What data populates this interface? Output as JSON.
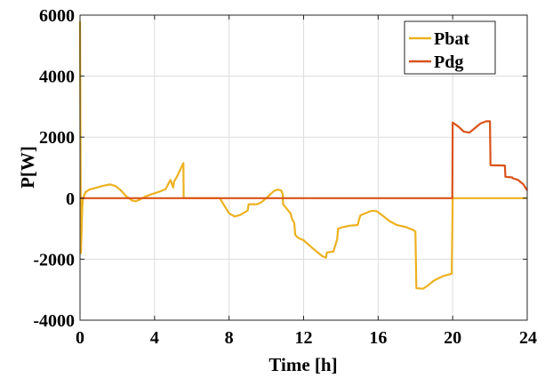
{
  "chart_data": {
    "type": "line",
    "xlabel": "Time [h]",
    "ylabel": "P[W]",
    "xlim": [
      0,
      24
    ],
    "ylim": [
      -4000,
      6000
    ],
    "xticks": [
      0,
      4,
      8,
      12,
      16,
      20,
      24
    ],
    "yticks": [
      -4000,
      -2000,
      0,
      2000,
      4000,
      6000
    ],
    "grid": true,
    "legend_position": "top-right",
    "series": [
      {
        "name": "Pbat",
        "color": "#EDB120",
        "x": [
          0,
          0.05,
          0.12,
          0.15,
          0.2,
          0.3,
          0.5,
          0.8,
          1.2,
          1.6,
          1.9,
          2.2,
          2.5,
          2.8,
          3.0,
          3.2,
          3.5,
          3.8,
          4.0,
          4.3,
          4.6,
          4.85,
          5.0,
          5.05,
          5.2,
          5.35,
          5.55,
          5.56,
          6.0,
          7.0,
          7.5,
          7.8,
          8.0,
          8.3,
          8.6,
          9.0,
          9.05,
          9.5,
          9.7,
          10.0,
          10.2,
          10.4,
          10.6,
          10.8,
          10.88,
          10.9,
          11.1,
          11.3,
          11.4,
          11.45,
          11.5,
          11.55,
          11.7,
          12.0,
          12.5,
          13.0,
          13.2,
          13.25,
          13.6,
          13.7,
          13.8,
          13.85,
          14.1,
          14.5,
          14.9,
          15.0,
          15.05,
          15.3,
          15.6,
          15.9,
          16.2,
          16.6,
          17.0,
          17.5,
          17.9,
          18.0,
          18.05,
          18.4,
          18.7,
          19.0,
          19.5,
          19.95,
          20.0,
          21.0,
          22.0,
          23.0,
          24.0
        ],
        "y": [
          5800,
          -1800,
          -300,
          -50,
          50,
          200,
          280,
          330,
          400,
          450,
          400,
          250,
          50,
          -80,
          -100,
          -50,
          50,
          120,
          160,
          220,
          300,
          600,
          350,
          550,
          700,
          900,
          1150,
          0,
          0,
          0,
          0,
          -300,
          -500,
          -600,
          -550,
          -400,
          -200,
          -200,
          -150,
          0,
          120,
          230,
          280,
          250,
          130,
          -200,
          -350,
          -500,
          -720,
          -750,
          -820,
          -1200,
          -1300,
          -1380,
          -1650,
          -1900,
          -1950,
          -1780,
          -1750,
          -1550,
          -1350,
          -1000,
          -950,
          -900,
          -880,
          -650,
          -560,
          -500,
          -420,
          -420,
          -550,
          -750,
          -880,
          -950,
          -1050,
          -1100,
          -2950,
          -2970,
          -2850,
          -2700,
          -2550,
          -2480,
          0,
          0,
          0,
          0,
          0
        ]
      },
      {
        "name": "Pdg",
        "color": "#D95319",
        "x": [
          0,
          19.98,
          20.0,
          20.3,
          20.6,
          20.9,
          21.2,
          21.5,
          21.8,
          22.0,
          22.03,
          22.8,
          22.83,
          23.2,
          23.23,
          23.5,
          23.8,
          24.0
        ],
        "y": [
          0,
          0,
          2480,
          2350,
          2180,
          2150,
          2300,
          2450,
          2520,
          2520,
          1080,
          1070,
          700,
          680,
          650,
          600,
          450,
          250
        ]
      }
    ]
  }
}
